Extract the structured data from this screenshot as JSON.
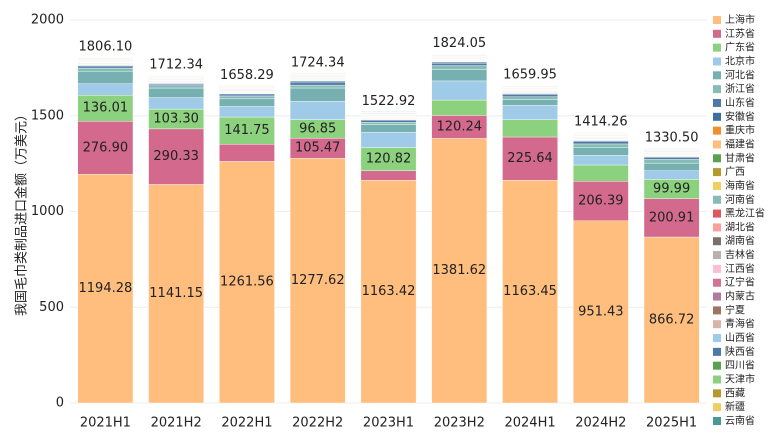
{
  "chart_data": {
    "type": "stacked-bar",
    "y_label": "我国毛巾类制品进口金额（万美元）",
    "categories": [
      "2021H1",
      "2021H2",
      "2022H1",
      "2022H2",
      "2023H1",
      "2023H2",
      "2024H1",
      "2024H2",
      "2025H1"
    ],
    "ylim": [
      0,
      2000
    ],
    "yticks": [
      0,
      500,
      1000,
      1500,
      2000
    ],
    "grid": true,
    "totals": [
      1806.1,
      1712.34,
      1658.29,
      1724.34,
      1522.92,
      1824.05,
      1659.95,
      1414.26,
      1330.5
    ],
    "total_labels": [
      "1806.10",
      "1712.34",
      "1658.29",
      "1724.34",
      "1522.92",
      "1824.05",
      "1659.95",
      "1414.26",
      "1330.50"
    ],
    "series": [
      {
        "name": "上海市",
        "color": "#ffbe7d",
        "values": [
          1194.28,
          1141.15,
          1261.56,
          1277.62,
          1163.42,
          1381.62,
          1163.45,
          951.43,
          866.72
        ],
        "value_labels": [
          "1194.28",
          "1141.15",
          "1261.56",
          "1277.62",
          "1163.42",
          "1381.62",
          "1163.45",
          "951.43",
          "866.72"
        ]
      },
      {
        "name": "江苏省",
        "color": "#d4698e",
        "values": [
          276.9,
          290.33,
          90,
          105.47,
          50,
          120.24,
          225.64,
          206.39,
          200.91
        ],
        "value_labels": [
          "276.90",
          "290.33",
          null,
          "105.47",
          null,
          "120.24",
          "225.64",
          "206.39",
          "200.91"
        ]
      },
      {
        "name": "广东省",
        "color": "#8cd17d",
        "values": [
          136.01,
          103.3,
          141.75,
          96.85,
          120.82,
          80,
          90,
          85,
          99.99
        ],
        "value_labels": [
          "136.01",
          "103.30",
          "141.75",
          "96.85",
          "120.82",
          null,
          null,
          null,
          "99.99"
        ]
      },
      {
        "name": "北京市",
        "color": "#a0cbe8",
        "values": [
          60,
          60,
          55,
          95,
          80,
          100,
          75,
          50,
          45
        ]
      },
      {
        "name": "河北省",
        "color": "#76b0b0",
        "values": [
          65,
          50,
          40,
          70,
          40,
          60,
          30,
          40,
          40
        ]
      },
      {
        "name": "浙江省",
        "color": "#86bcb6",
        "values": [
          15,
          12,
          12,
          15,
          12,
          20,
          15,
          20,
          20
        ]
      },
      {
        "name": "山东省",
        "color": "#4e79a7",
        "values": [
          8,
          6,
          8,
          12,
          8,
          12,
          12,
          12,
          10
        ]
      },
      {
        "name": "安徽省",
        "color": "#3c6e9f",
        "values": [
          6.91,
          5.56,
          5.98,
          8.4,
          4.68,
          6.19,
          4.86,
          5.44,
          3.88
        ]
      },
      {
        "name": "重庆市",
        "color": "#f28e2b",
        "values": [
          2,
          2,
          2,
          2,
          2,
          2,
          2,
          2,
          2
        ]
      },
      {
        "name": "福建省",
        "color": "#ffbe7d",
        "values": [
          2,
          2,
          2,
          2,
          2,
          2,
          2,
          2,
          2
        ]
      },
      {
        "name": "甘肃省",
        "color": "#59a14f",
        "values": [
          2,
          2,
          2,
          2,
          2,
          2,
          2,
          2,
          2
        ]
      },
      {
        "name": "广西",
        "color": "#b6992d",
        "values": [
          2,
          2,
          2,
          2,
          2,
          2,
          2,
          2,
          2
        ]
      },
      {
        "name": "海南省",
        "color": "#f1ce63",
        "values": [
          2,
          2,
          2,
          2,
          2,
          2,
          2,
          2,
          2
        ]
      },
      {
        "name": "河南省",
        "color": "#86bcb6",
        "values": [
          2,
          2,
          2,
          2,
          2,
          2,
          2,
          2,
          2
        ]
      },
      {
        "name": "黑龙江省",
        "color": "#e15759",
        "values": [
          2,
          2,
          2,
          2,
          2,
          2,
          2,
          2,
          2
        ]
      },
      {
        "name": "湖北省",
        "color": "#ff9d9a",
        "values": [
          2,
          2,
          2,
          2,
          2,
          2,
          2,
          2,
          2
        ]
      },
      {
        "name": "湖南省",
        "color": "#79706e",
        "values": [
          2,
          2,
          2,
          2,
          2,
          2,
          2,
          2,
          2
        ]
      },
      {
        "name": "吉林省",
        "color": "#bab0ac",
        "values": [
          2,
          2,
          2,
          2,
          2,
          2,
          2,
          2,
          2
        ]
      },
      {
        "name": "江西省",
        "color": "#fabfd2",
        "values": [
          2,
          2,
          2,
          2,
          2,
          2,
          2,
          2,
          2
        ]
      },
      {
        "name": "辽宁省",
        "color": "#d37295",
        "values": [
          2,
          2,
          2,
          2,
          2,
          2,
          2,
          2,
          2
        ]
      },
      {
        "name": "内蒙古",
        "color": "#b07aa1",
        "values": [
          2,
          2,
          2,
          2,
          2,
          2,
          2,
          2,
          2
        ]
      },
      {
        "name": "宁夏",
        "color": "#9d7660",
        "values": [
          2,
          2,
          2,
          2,
          2,
          2,
          2,
          2,
          2
        ]
      },
      {
        "name": "青海省",
        "color": "#d7b5a6",
        "values": [
          2,
          2,
          2,
          2,
          2,
          2,
          2,
          2,
          2
        ]
      },
      {
        "name": "山西省",
        "color": "#a0cbe8",
        "values": [
          2,
          2,
          2,
          2,
          2,
          2,
          2,
          2,
          2
        ]
      },
      {
        "name": "陕西省",
        "color": "#4e79a7",
        "values": [
          2,
          2,
          2,
          2,
          2,
          2,
          2,
          2,
          2
        ]
      },
      {
        "name": "四川省",
        "color": "#59a14f",
        "values": [
          2,
          2,
          2,
          2,
          2,
          2,
          2,
          2,
          2
        ]
      },
      {
        "name": "天津市",
        "color": "#8cd17d",
        "values": [
          2,
          2,
          2,
          2,
          2,
          2,
          2,
          2,
          2
        ]
      },
      {
        "name": "西藏",
        "color": "#b6992d",
        "values": [
          2,
          2,
          2,
          2,
          2,
          2,
          2,
          2,
          2
        ]
      },
      {
        "name": "新疆",
        "color": "#f1ce63",
        "values": [
          2,
          2,
          2,
          2,
          2,
          2,
          2,
          2,
          2
        ]
      },
      {
        "name": "云南省",
        "color": "#499894",
        "values": [
          2,
          2,
          2,
          2,
          2,
          2,
          2,
          2,
          2
        ]
      }
    ]
  }
}
